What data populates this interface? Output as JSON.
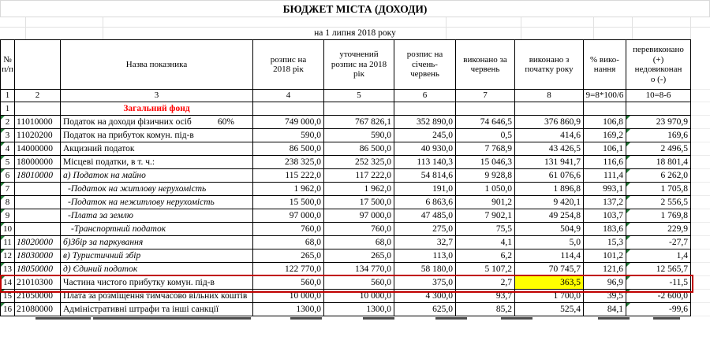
{
  "app": {
    "title": "БЮДЖЕТ МІСТА (ДОХОДИ)",
    "date_line": "на 1 липня 2018 року"
  },
  "colors": {
    "yellow_highlight": "#ffff00",
    "red_box": "#c00000",
    "fund_text_red": "#ff0000",
    "error_triangle_green": "#217a36",
    "grid_light": "#e1e1e1"
  },
  "table": {
    "columns": [
      {
        "label": "№\nп/п",
        "num": "1"
      },
      {
        "label": "",
        "num": "2"
      },
      {
        "label": "Назва показника",
        "num": "3"
      },
      {
        "label": "розпис на\n2018 рік",
        "num": "4"
      },
      {
        "label": "уточнений\nрозпис на 2018\nрік",
        "num": "5"
      },
      {
        "label": "розпис  на\nсічень-\nчервень",
        "num": "6"
      },
      {
        "label": "виконано за\nчервень",
        "num": "7"
      },
      {
        "label": "виконано з\nпочатку року",
        "num": "8"
      },
      {
        "label": "% вико-\nнання",
        "num": "9=8*100/6"
      },
      {
        "label": "перевиконано\n(+)\nнедовиконан\nо  (-)",
        "num": "10=8-6"
      }
    ],
    "rows": [
      {
        "num": "1",
        "code": "",
        "name": "Загальний фонд",
        "style": "fund",
        "tri": false,
        "values": [
          "",
          "",
          "",
          "",
          "",
          "",
          ""
        ]
      },
      {
        "num": "2",
        "code": "11010000",
        "name": "Податок на доходи фізичних осіб",
        "suffix": "60%",
        "tri": true,
        "values": [
          "749 000,0",
          "767 826,1",
          "352 890,0",
          "74 646,5",
          "376 860,9",
          "106,8",
          "23 970,9"
        ]
      },
      {
        "num": "3",
        "code": "11020200",
        "name": "Податок на прибуток комун. під-в",
        "tri": true,
        "values": [
          "590,0",
          "590,0",
          "245,0",
          "0,5",
          "414,6",
          "169,2",
          "169,6"
        ]
      },
      {
        "num": "4",
        "code": "14000000",
        "name": "Акцизний податок",
        "tri": true,
        "values": [
          "86 500,0",
          "86 500,0",
          "40 930,0",
          "7 768,9",
          "43 426,5",
          "106,1",
          "2 496,5"
        ]
      },
      {
        "num": "5",
        "code": "18000000",
        "name": "Місцеві податки, в т. ч.:",
        "tri": true,
        "values": [
          "238 325,0",
          "252 325,0",
          "113 140,3",
          "15 046,3",
          "131 941,7",
          "116,6",
          "18 801,4"
        ]
      },
      {
        "num": "6",
        "code": "18010000",
        "name": "а) Податок на майно",
        "italic": true,
        "tri": true,
        "values": [
          "115 222,0",
          "117 222,0",
          "54 814,6",
          "9 928,8",
          "61 076,6",
          "111,4",
          "6 262,0"
        ]
      },
      {
        "num": "7",
        "code": "",
        "name": "-Податок на житлову нерухомість",
        "italic": true,
        "indent": 6,
        "tri": true,
        "values": [
          "1 962,0",
          "1 962,0",
          "191,0",
          "1 050,0",
          "1 896,8",
          "993,1",
          "1 705,8"
        ]
      },
      {
        "num": "8",
        "code": "",
        "name": "-Податок на нежитлову нерухомість",
        "italic": true,
        "indent": 6,
        "tri": true,
        "values": [
          "15 500,0",
          "17 500,0",
          "6 863,6",
          "901,2",
          "9 420,1",
          "137,2",
          "2 556,5"
        ]
      },
      {
        "num": "9",
        "code": "",
        "name": "-Плата за землю",
        "italic": true,
        "indent": 6,
        "tri": true,
        "values": [
          "97 000,0",
          "97 000,0",
          "47 485,0",
          "7 902,1",
          "49 254,8",
          "103,7",
          "1 769,8"
        ]
      },
      {
        "num": "10",
        "code": "",
        "name": "-Транспортний податок",
        "italic": true,
        "indent": 10,
        "tri": true,
        "values": [
          "760,0",
          "760,0",
          "275,0",
          "75,5",
          "504,9",
          "183,6",
          "229,9"
        ]
      },
      {
        "num": "11",
        "code": "18020000",
        "name": "б)Збір за паркування",
        "italic": true,
        "tri": true,
        "values": [
          "68,0",
          "68,0",
          "32,7",
          "4,1",
          "5,0",
          "15,3",
          "-27,7"
        ]
      },
      {
        "num": "12",
        "code": "18030000",
        "name": "в) Туристичний збір",
        "italic": true,
        "tri": true,
        "values": [
          "265,0",
          "265,0",
          "113,0",
          "6,2",
          "114,4",
          "101,2",
          "1,4"
        ]
      },
      {
        "num": "13",
        "code": "18050000",
        "name": "д) Єдиний податок",
        "italic": true,
        "tri": true,
        "values": [
          "122 770,0",
          "134 770,0",
          "58 180,0",
          "5 107,2",
          "70 745,7",
          "121,6",
          "12 565,7"
        ]
      },
      {
        "num": "14",
        "code": "21010300",
        "name": "Частина чистого прибутку комун. під-в",
        "tri": true,
        "red_box": true,
        "yellow": 4,
        "values": [
          "560,0",
          "560,0",
          "375,0",
          "2,7",
          "363,5",
          "96,9",
          "-11,5"
        ]
      },
      {
        "num": "15",
        "code": "21050000",
        "name": "Плата за розміщення тимчасово вільних коштів",
        "tri": true,
        "values": [
          "10 000,0",
          "10 000,0",
          "4 300,0",
          "93,7",
          "1 700,0",
          "39,5",
          "-2 600,0"
        ]
      },
      {
        "num": "16",
        "code": "21080000",
        "name": "Адміністративні штрафи та інші санкції",
        "tri": true,
        "values": [
          "1300,0",
          "1300,0",
          "625,0",
          "85,2",
          "525,4",
          "84,1",
          "-99,6"
        ]
      }
    ]
  }
}
